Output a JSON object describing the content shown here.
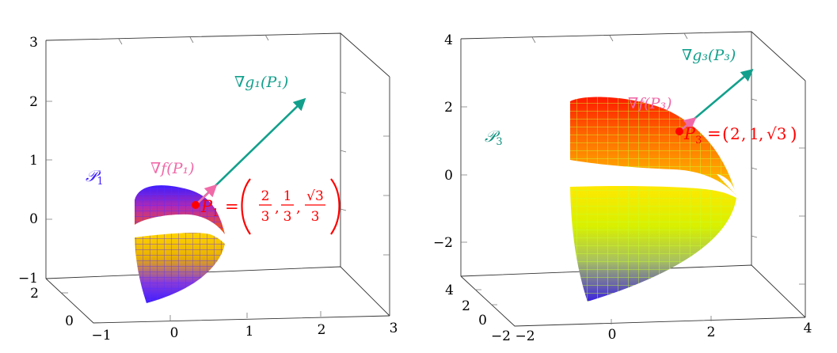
{
  "chart_data": [
    {
      "type": "surface",
      "title": "",
      "z_ticks": [
        "3",
        "2",
        "1",
        "0",
        "−1"
      ],
      "x_ticks": [
        "−1",
        "0",
        "1",
        "2",
        "3"
      ],
      "y_ticks": [
        "2",
        "0"
      ],
      "surface_label": "𝒫",
      "surface_label_sub": "1",
      "surface_color": "#3d1cff",
      "surface_colormap": [
        "#3d1cff",
        "#ff5a00",
        "#ffdd00"
      ],
      "point": {
        "name": "P",
        "sub": "1",
        "x": 0.667,
        "y": 0.333,
        "z": 0.577,
        "value_text": [
          "2/3",
          "1/3",
          "√3/3"
        ]
      },
      "gradient_f_label": "∇f(P₁)",
      "gradient_g_label": "∇g₁(P₁)",
      "gradient_f_color": "#f06aa8",
      "gradient_g_color": "#12a08c",
      "point_color": "#ff0000"
    },
    {
      "type": "surface",
      "title": "",
      "z_ticks": [
        "4",
        "2",
        "0",
        "−2"
      ],
      "x_ticks": [
        "−2",
        "0",
        "2",
        "4"
      ],
      "y_ticks": [
        "4",
        "2",
        "0",
        "−2"
      ],
      "surface_label": "𝒫",
      "surface_label_sub": "3",
      "surface_color": "#11917f",
      "surface_colormap": [
        "#3d1cff",
        "#ccff00",
        "#ffdd00",
        "#ff5a00",
        "#ff0000"
      ],
      "point": {
        "name": "P",
        "sub": "3",
        "x": 2,
        "y": 1,
        "z": 1.732,
        "value_text": [
          "2",
          "1",
          "√3"
        ]
      },
      "gradient_f_label": "∇f(P₃)",
      "gradient_g_label": "∇g₃(P₃)",
      "gradient_f_color": "#f06aa8",
      "gradient_g_color": "#12a08c",
      "point_color": "#ff0000"
    }
  ]
}
